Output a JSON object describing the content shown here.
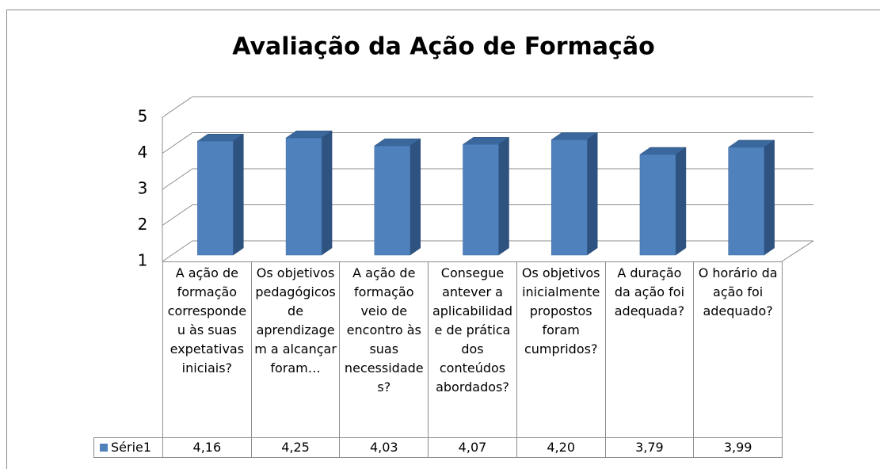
{
  "chart_data": {
    "type": "bar3d",
    "title": "Avaliação da Ação de Formação",
    "categories": [
      "A ação de formação correspondeu às suas expetativas iniciais?",
      "Os objetivos pedagógicos de aprendizagem a alcançar foram…",
      "A ação de formação veio de encontro às suas necessidades?",
      "Consegue antever a aplicabilidade de prática dos conteúdos abordados?",
      "Os objetivos inicialmente propostos foram cumpridos?",
      "A duração da ação foi adequada?",
      "O horário da ação foi adequado?"
    ],
    "series": [
      {
        "name": "Série1",
        "color": "#4f81bd",
        "values": [
          4.16,
          4.25,
          4.03,
          4.07,
          4.2,
          3.79,
          3.99
        ],
        "value_labels": [
          "4,16",
          "4,25",
          "4,03",
          "4,07",
          "4,20",
          "3,79",
          "3,99"
        ]
      }
    ],
    "ylim": [
      1,
      5
    ],
    "yticks": [
      1,
      2,
      3,
      4,
      5
    ],
    "grid": true,
    "data_table": true
  }
}
